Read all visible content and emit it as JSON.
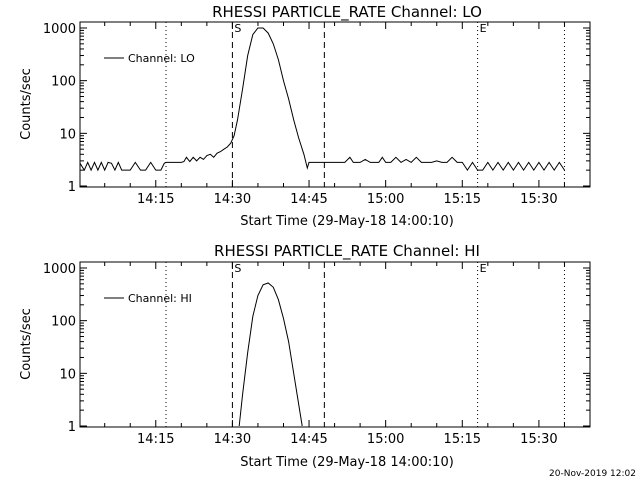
{
  "timestamp": "20-Nov-2019 12:02",
  "chart_data": [
    {
      "type": "line",
      "title": "RHESSI PARTICLE_RATE Channel: LO",
      "xlabel": "Start Time (29-May-18 14:00:10)",
      "ylabel": "Counts/sec",
      "yscale": "log",
      "ylim": [
        1,
        1100
      ],
      "xlim": [
        "14:00:10",
        "15:40:00"
      ],
      "xticks": [
        "14:15",
        "14:30",
        "14:45",
        "15:00",
        "15:15",
        "15:30"
      ],
      "yticks": [
        "1",
        "10",
        "100",
        "1000"
      ],
      "legend": {
        "label": "Channel: LO",
        "position": "top-left"
      },
      "markers": [
        {
          "label": "S",
          "time": "14:30:00",
          "style": "dashed"
        },
        {
          "label": "",
          "time": "14:48:00",
          "style": "dashed"
        },
        {
          "label": "E",
          "time": "15:18:00",
          "style": "dotted"
        }
      ],
      "reference_lines": [
        {
          "time": "14:17:00",
          "style": "dotted"
        },
        {
          "time": "15:35:00",
          "style": "dotted"
        }
      ],
      "series": [
        {
          "x": [
            "14:00:10",
            "14:01:00",
            "14:01:40",
            "14:02:20",
            "14:03:00",
            "14:03:40",
            "14:04:20",
            "14:05:00",
            "14:05:40",
            "14:06:20",
            "14:07:00",
            "14:07:40",
            "14:08:20",
            "14:09:00",
            "14:10:00",
            "14:11:00",
            "14:12:00",
            "14:13:00",
            "14:14:00",
            "14:15:00",
            "14:16:00",
            "14:16:40",
            "14:17:00",
            "14:18:00",
            "14:19:00",
            "14:20:00",
            "14:20:30",
            "14:21:00",
            "14:21:40",
            "14:22:20",
            "14:23:00",
            "14:23:40",
            "14:24:20",
            "14:25:00",
            "14:25:40",
            "14:26:20",
            "14:27:00",
            "14:27:40",
            "14:28:20",
            "14:29:00",
            "14:29:40",
            "14:30:20",
            "14:31:00",
            "14:32:00",
            "14:33:00",
            "14:34:00",
            "14:35:00",
            "14:36:00",
            "14:37:00",
            "14:38:00",
            "14:39:00",
            "14:40:00",
            "14:41:00",
            "14:42:00",
            "14:43:00",
            "14:44:00",
            "14:44:40",
            "14:45:00",
            "14:45:40",
            "14:46:20",
            "14:47:00",
            "14:48:00",
            "14:50:00",
            "14:52:00",
            "14:53:00",
            "14:53:40",
            "14:54:20",
            "14:55:00",
            "14:56:00",
            "14:57:00",
            "14:58:00",
            "14:58:40",
            "14:59:20",
            "15:00:00",
            "15:01:00",
            "15:02:00",
            "15:03:00",
            "15:04:00",
            "15:05:00",
            "15:06:00",
            "15:07:00",
            "15:08:00",
            "15:09:00",
            "15:10:00",
            "15:11:00",
            "15:12:00",
            "15:13:00",
            "15:14:00",
            "15:15:00",
            "15:16:00",
            "15:17:00",
            "15:18:00",
            "15:19:00",
            "15:20:00",
            "15:21:00",
            "15:22:00",
            "15:23:00",
            "15:24:00",
            "15:25:00",
            "15:26:00",
            "15:27:00",
            "15:28:00",
            "15:29:00",
            "15:30:00",
            "15:31:00",
            "15:32:00",
            "15:33:00",
            "15:34:00",
            "15:35:00"
          ],
          "values": [
            2.7,
            2.0,
            2.8,
            2.0,
            2.8,
            2.0,
            2.8,
            2.0,
            2.8,
            2.7,
            2.0,
            2.8,
            2.0,
            2.0,
            2.0,
            2.8,
            2.0,
            2.0,
            2.8,
            2.0,
            2.0,
            2.7,
            2.8,
            2.8,
            2.8,
            2.8,
            2.9,
            3.5,
            2.9,
            3.5,
            3.0,
            3.5,
            3.2,
            3.8,
            4.0,
            3.5,
            4.2,
            4.5,
            5.0,
            5.5,
            6.5,
            9.0,
            18,
            70,
            300,
            750,
            1000,
            1000,
            800,
            500,
            250,
            100,
            45,
            18,
            8,
            4,
            2.2,
            2.8,
            2.8,
            2.8,
            2.8,
            2.8,
            2.8,
            2.8,
            3.5,
            2.8,
            2.8,
            2.8,
            3.2,
            2.8,
            2.8,
            2.8,
            3.5,
            2.8,
            2.8,
            3.5,
            2.8,
            3.2,
            2.8,
            3.5,
            2.8,
            2.8,
            2.8,
            3.0,
            2.8,
            2.8,
            3.5,
            2.8,
            2.8,
            2.0,
            2.8,
            2.0,
            2.0,
            2.8,
            2.0,
            2.8,
            2.0,
            2.8,
            2.0,
            2.8,
            2.0,
            2.8,
            2.0,
            2.8,
            2.0,
            2.8,
            2.0,
            2.8,
            2.0
          ]
        }
      ]
    },
    {
      "type": "line",
      "title": "RHESSI PARTICLE_RATE Channel: HI",
      "xlabel": "Start Time (29-May-18 14:00:10)",
      "ylabel": "Counts/sec",
      "yscale": "log",
      "ylim": [
        1,
        1100
      ],
      "xlim": [
        "14:00:10",
        "15:40:00"
      ],
      "xticks": [
        "14:15",
        "14:30",
        "14:45",
        "15:00",
        "15:15",
        "15:30"
      ],
      "yticks": [
        "1",
        "10",
        "100",
        "1000"
      ],
      "legend": {
        "label": "Channel: HI",
        "position": "top-left"
      },
      "markers": [
        {
          "label": "S",
          "time": "14:30:00",
          "style": "dashed"
        },
        {
          "label": "",
          "time": "14:48:00",
          "style": "dashed"
        },
        {
          "label": "E",
          "time": "15:18:00",
          "style": "dotted"
        }
      ],
      "reference_lines": [
        {
          "time": "14:17:00",
          "style": "dotted"
        },
        {
          "time": "15:35:00",
          "style": "dotted"
        }
      ],
      "series": [
        {
          "x": [
            "14:31:20",
            "14:32:00",
            "14:33:00",
            "14:34:00",
            "14:35:00",
            "14:36:00",
            "14:37:00",
            "14:38:00",
            "14:39:00",
            "14:40:00",
            "14:41:00",
            "14:42:00",
            "14:43:00",
            "14:43:40"
          ],
          "values": [
            1.0,
            4,
            25,
            120,
            300,
            480,
            520,
            430,
            250,
            110,
            40,
            10,
            2.5,
            1.0
          ]
        }
      ]
    }
  ]
}
